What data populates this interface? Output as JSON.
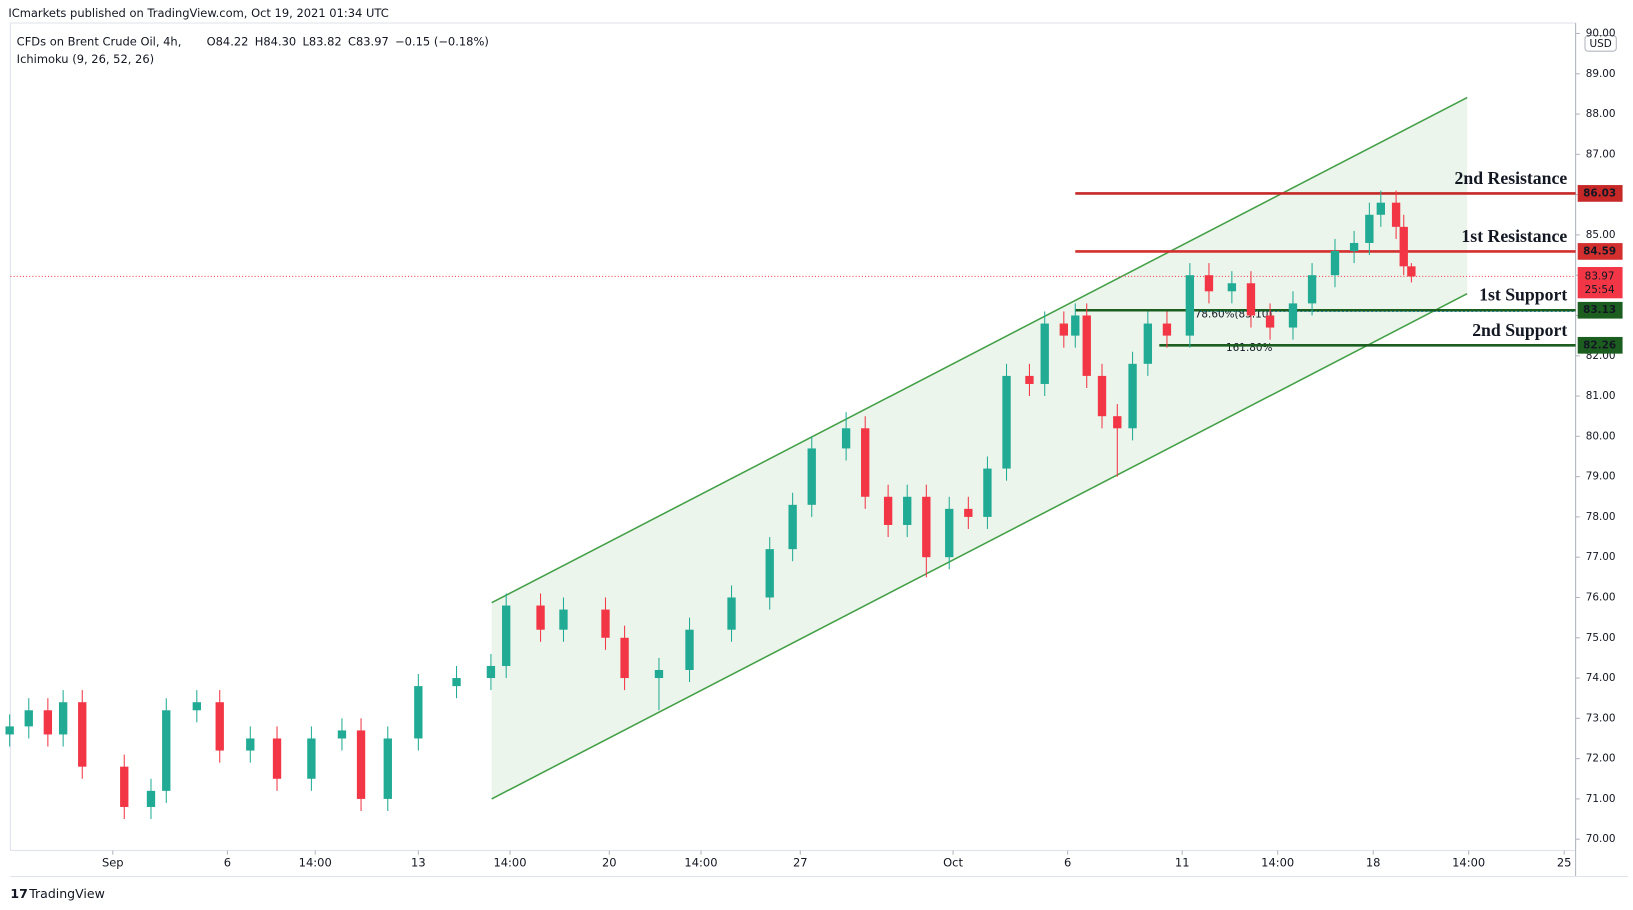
{
  "header": {
    "published": "ICmarkets published on TradingView.com, Oct 19, 2021 01:34 UTC",
    "symbol": "CFDs on Brent Crude Oil, 4h,",
    "ohlc": [
      "O84.22",
      "H84.30",
      "L83.82",
      "C83.97"
    ],
    "change": "−0.15 (−0.18%)",
    "indicator": "Ichimoku (9, 26, 52, 26)"
  },
  "footer": {
    "brand": "TradingView"
  },
  "chart_data": {
    "type": "candlestick",
    "currency": "USD",
    "up_color": "#22ab94",
    "down_color": "#f23645",
    "x": [
      -2.7,
      -2.2,
      -1.7,
      -1.3,
      -0.8,
      0.3,
      1.0,
      1.4,
      2.2,
      2.8,
      3.6,
      4.3,
      5.2,
      6.0,
      6.5,
      7.2,
      8.0,
      9.0,
      9.9,
      10.3,
      11.2,
      11.8,
      12.9,
      13.4,
      14.3,
      15.1,
      16.2,
      17.2,
      17.8,
      18.3,
      19.2,
      19.7,
      20.3,
      20.8,
      21.3,
      21.9,
      22.4,
      22.9,
      23.4,
      24.0,
      24.4,
      24.9,
      25.2,
      25.5,
      25.9,
      26.3,
      26.7,
      27.1,
      27.6,
      28.2,
      28.7,
      29.3,
      29.8,
      30.3,
      30.9,
      31.4,
      32.0,
      32.5,
      32.9,
      33.2,
      33.6,
      33.8,
      34.0
    ],
    "open": [
      72.6,
      72.8,
      73.2,
      72.6,
      73.4,
      71.8,
      70.8,
      71.2,
      73.2,
      73.4,
      72.2,
      72.5,
      71.5,
      72.5,
      72.7,
      71.0,
      72.5,
      73.8,
      74.0,
      74.3,
      75.8,
      75.2,
      75.7,
      75.0,
      74.0,
      74.2,
      75.2,
      76.0,
      77.2,
      78.3,
      79.7,
      80.2,
      78.5,
      77.8,
      78.5,
      77.0,
      78.2,
      78.0,
      79.2,
      81.5,
      81.3,
      82.8,
      82.5,
      83.0,
      81.5,
      80.5,
      80.2,
      81.8,
      82.8,
      82.5,
      84.0,
      83.6,
      83.8,
      83.0,
      82.7,
      83.3,
      84.0,
      84.6,
      84.8,
      85.5,
      85.8,
      85.2,
      84.22
    ],
    "high": [
      73.1,
      73.5,
      73.5,
      73.7,
      73.7,
      72.1,
      71.5,
      73.5,
      73.7,
      73.7,
      72.8,
      72.8,
      72.8,
      73.0,
      73.0,
      72.8,
      74.1,
      74.3,
      74.6,
      76.1,
      76.1,
      76.0,
      76.0,
      75.3,
      74.5,
      75.5,
      76.3,
      77.5,
      78.6,
      80.0,
      80.6,
      80.5,
      78.8,
      78.8,
      78.8,
      78.5,
      78.5,
      79.5,
      81.8,
      81.8,
      83.1,
      83.1,
      83.3,
      83.3,
      81.8,
      80.8,
      82.1,
      83.1,
      83.1,
      84.3,
      84.3,
      84.1,
      84.1,
      83.3,
      83.6,
      84.3,
      84.9,
      85.1,
      85.8,
      86.1,
      86.1,
      85.5,
      84.3
    ],
    "low": [
      72.3,
      72.5,
      72.3,
      72.3,
      71.5,
      70.5,
      70.5,
      70.9,
      72.9,
      71.9,
      71.9,
      71.2,
      71.2,
      72.2,
      70.7,
      70.7,
      72.2,
      73.5,
      73.7,
      74.0,
      74.9,
      74.9,
      74.7,
      73.7,
      73.2,
      73.9,
      74.9,
      75.7,
      76.9,
      78.0,
      79.4,
      78.2,
      77.5,
      77.5,
      76.5,
      76.7,
      77.7,
      77.7,
      78.9,
      81.0,
      81.0,
      82.2,
      82.2,
      81.2,
      80.2,
      79.0,
      79.9,
      81.5,
      82.2,
      82.2,
      83.3,
      83.3,
      82.7,
      82.4,
      82.4,
      83.0,
      83.7,
      84.3,
      84.5,
      85.2,
      84.9,
      84.0,
      83.82
    ],
    "close": [
      72.8,
      73.2,
      72.6,
      73.4,
      71.8,
      70.8,
      71.2,
      73.2,
      73.4,
      72.2,
      72.5,
      71.5,
      72.5,
      72.7,
      71.0,
      72.5,
      73.8,
      74.0,
      74.3,
      75.8,
      75.2,
      75.7,
      75.0,
      74.0,
      74.2,
      75.2,
      76.0,
      77.2,
      78.3,
      79.7,
      80.2,
      78.5,
      77.8,
      78.5,
      77.0,
      78.2,
      78.0,
      79.2,
      81.5,
      81.3,
      82.8,
      82.5,
      83.0,
      81.5,
      80.5,
      80.2,
      81.8,
      82.8,
      82.5,
      84.0,
      83.6,
      83.8,
      83.0,
      82.7,
      83.3,
      84.0,
      84.6,
      84.8,
      85.5,
      85.8,
      85.2,
      84.22,
      83.97
    ],
    "xlim": [
      -2.68,
      38.3
    ],
    "xticks": [
      {
        "value": 0,
        "label": "Sep"
      },
      {
        "value": 3,
        "label": "6"
      },
      {
        "value": 5.3,
        "label": "14:00"
      },
      {
        "value": 8,
        "label": "13"
      },
      {
        "value": 10.4,
        "label": "14:00"
      },
      {
        "value": 13,
        "label": "20"
      },
      {
        "value": 15.4,
        "label": "14:00"
      },
      {
        "value": 18,
        "label": "27"
      },
      {
        "value": 22,
        "label": "Oct"
      },
      {
        "value": 25,
        "label": "6"
      },
      {
        "value": 28,
        "label": "11"
      },
      {
        "value": 30.5,
        "label": "14:00"
      },
      {
        "value": 33,
        "label": "18"
      },
      {
        "value": 35.5,
        "label": "14:00"
      },
      {
        "value": 38,
        "label": "25"
      }
    ],
    "ylim": [
      69.72,
      90.26
    ],
    "yticks": [
      {
        "value": 70,
        "label": "70.00"
      },
      {
        "value": 71,
        "label": "71.00"
      },
      {
        "value": 72,
        "label": "72.00"
      },
      {
        "value": 73,
        "label": "73.00"
      },
      {
        "value": 74,
        "label": "74.00"
      },
      {
        "value": 75,
        "label": "75.00"
      },
      {
        "value": 76,
        "label": "76.00"
      },
      {
        "value": 77,
        "label": "77.00"
      },
      {
        "value": 78,
        "label": "78.00"
      },
      {
        "value": 79,
        "label": "79.00"
      },
      {
        "value": 80,
        "label": "80.00"
      },
      {
        "value": 81,
        "label": "81.00"
      },
      {
        "value": 82,
        "label": "82.00"
      },
      {
        "value": 83,
        "label": "83.00"
      },
      {
        "value": 84,
        "label": "84.00"
      },
      {
        "value": 85,
        "label": "85.00"
      },
      {
        "value": 86,
        "label": "86.00"
      },
      {
        "value": 87,
        "label": "87.00"
      },
      {
        "value": 88,
        "label": "88.00"
      },
      {
        "value": 89,
        "label": "89.00"
      },
      {
        "value": 90,
        "label": "90.00"
      }
    ],
    "channel": {
      "color": "#43a047",
      "upper": {
        "x": [
          9.92,
          35.46
        ],
        "y": [
          75.87,
          88.41
        ]
      },
      "lower": {
        "x": [
          9.92,
          35.46
        ],
        "y": [
          71.0,
          83.54
        ]
      }
    },
    "levels": [
      {
        "name": "2nd Resistance",
        "value": 86.03,
        "start": 25.2,
        "color": "#c62828"
      },
      {
        "name": "1st Resistance",
        "value": 84.59,
        "start": 25.2,
        "color": "#d32f2f"
      },
      {
        "name": "1st Support",
        "value": 83.13,
        "start": 25.2,
        "color": "#1b5e20"
      },
      {
        "name": "2nd Support",
        "value": 82.26,
        "start": 27.4,
        "color": "#1b5e20"
      }
    ],
    "last_price": {
      "value": 83.97,
      "countdown": "25:54",
      "color": "#f23645"
    },
    "annotations": [
      {
        "label": "78.60%(83.10)",
        "value": 83.1,
        "color": "#2196f3"
      },
      {
        "label": "161.80%",
        "value": 82.27,
        "color": "#f9a825"
      }
    ]
  }
}
